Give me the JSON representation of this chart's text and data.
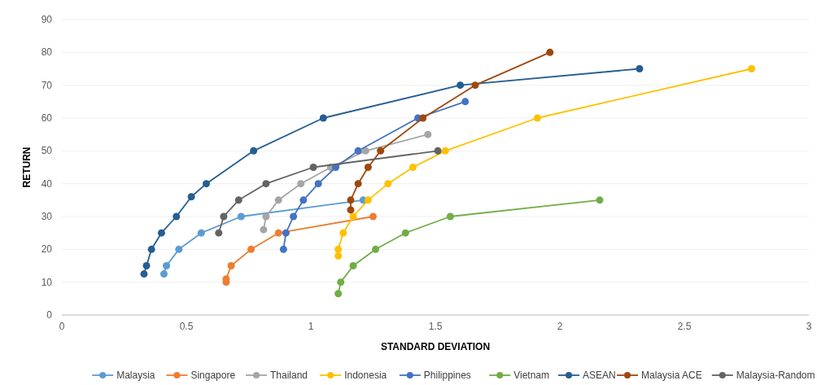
{
  "chart_data": {
    "type": "line",
    "xlabel": "STANDARD DEVIATION",
    "ylabel": "RETURN",
    "xlim": [
      0,
      3
    ],
    "xticks": [
      0,
      0.5,
      1,
      1.5,
      2,
      2.5,
      3
    ],
    "ylim": [
      0,
      90
    ],
    "yticks": [
      0,
      10,
      20,
      30,
      40,
      50,
      60,
      70,
      80,
      90
    ],
    "grid": "y",
    "legend": "bottom",
    "marker": "circle",
    "line_style": "solid",
    "series": [
      {
        "name": "Malaysia",
        "color": "#5b9bd5",
        "x": [
          0.41,
          0.42,
          0.47,
          0.56,
          0.72,
          1.21
        ],
        "values": [
          12.5,
          15,
          20,
          25,
          30,
          35
        ]
      },
      {
        "name": "Singapore",
        "color": "#ed7d31",
        "x": [
          0.66,
          0.66,
          0.68,
          0.76,
          0.87,
          1.25
        ],
        "values": [
          10,
          11,
          15,
          20,
          25,
          30
        ]
      },
      {
        "name": "Thailand",
        "color": "#a5a5a5",
        "x": [
          0.81,
          0.82,
          0.87,
          0.96,
          1.08,
          1.22,
          1.47
        ],
        "values": [
          26,
          30,
          35,
          40,
          45,
          50,
          55
        ]
      },
      {
        "name": "Indonesia",
        "color": "#ffc000",
        "x": [
          1.11,
          1.11,
          1.13,
          1.17,
          1.23,
          1.31,
          1.41,
          1.54,
          1.91,
          2.77
        ],
        "values": [
          18,
          20,
          25,
          30,
          35,
          40,
          45,
          50,
          60,
          75
        ]
      },
      {
        "name": "Philippines",
        "color": "#4472c4",
        "x": [
          0.89,
          0.9,
          0.93,
          0.97,
          1.03,
          1.1,
          1.19,
          1.43,
          1.62
        ],
        "values": [
          20,
          25,
          30,
          35,
          40,
          45,
          50,
          60,
          65
        ]
      },
      {
        "name": "Vietnam",
        "color": "#70ad47",
        "x": [
          1.11,
          1.12,
          1.17,
          1.26,
          1.38,
          1.56,
          2.16
        ],
        "values": [
          6.5,
          10,
          15,
          20,
          25,
          30,
          35
        ]
      },
      {
        "name": "ASEAN",
        "color": "#255e91",
        "x": [
          0.33,
          0.34,
          0.36,
          0.4,
          0.46,
          0.52,
          0.58,
          0.77,
          1.05,
          1.6,
          2.32
        ],
        "values": [
          12.5,
          15,
          20,
          25,
          30,
          36,
          40,
          50,
          60,
          70,
          75
        ]
      },
      {
        "name": "Malaysia ACE",
        "color": "#9e480e",
        "x": [
          1.16,
          1.16,
          1.19,
          1.23,
          1.28,
          1.45,
          1.66,
          1.96
        ],
        "values": [
          32,
          35,
          40,
          45,
          50,
          60,
          70,
          80
        ]
      },
      {
        "name": "Malaysia-Random",
        "color": "#636363",
        "x": [
          0.63,
          0.65,
          0.71,
          0.82,
          1.01,
          1.51
        ],
        "values": [
          25,
          30,
          35,
          40,
          45,
          50
        ]
      }
    ]
  }
}
